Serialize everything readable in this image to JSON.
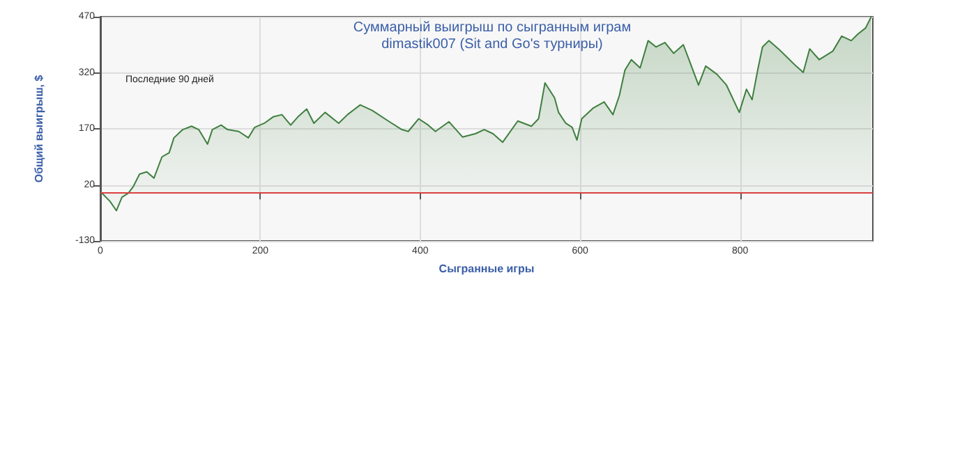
{
  "chart_data": {
    "type": "area",
    "title": "Суммарный выигрыш по сыгранным играм",
    "subtitle": "dimastik007 (Sit and Go's турниры)",
    "xlabel": "Сыгранные игры",
    "ylabel": "Общий выигрыш, $",
    "annotations": [
      "Последние 90 дней"
    ],
    "xlim": [
      0,
      966
    ],
    "xticks": [
      0,
      200,
      400,
      600,
      800
    ],
    "ylim": [
      -130,
      470
    ],
    "yticks": [
      -130,
      20,
      170,
      320,
      470
    ],
    "grid": true,
    "marker": "none",
    "line_style": "solid",
    "ref_lines": [
      {
        "axis": "y",
        "value": 0,
        "color": "#d94040"
      }
    ],
    "series": [
      {
        "color": "#3f7f3f",
        "x": [
          1,
          12,
          20,
          27,
          35,
          41,
          49,
          58,
          67,
          77,
          86,
          92,
          103,
          114,
          123,
          134,
          140,
          151,
          159,
          173,
          185,
          193,
          205,
          216,
          227,
          238,
          247,
          258,
          267,
          281,
          298,
          309,
          325,
          340,
          360,
          377,
          385,
          398,
          410,
          419,
          436,
          453,
          469,
          480,
          491,
          503,
          522,
          539,
          548,
          556,
          568,
          573,
          582,
          590,
          596,
          602,
          616,
          630,
          641,
          649,
          656,
          664,
          675,
          685,
          695,
          706,
          717,
          729,
          737,
          748,
          757,
          771,
          783,
          799,
          808,
          815,
          822,
          828,
          836,
          848,
          859,
          870,
          879,
          887,
          899,
          916,
          927,
          939,
          947,
          957,
          964
        ],
        "values": [
          0,
          -24,
          -49,
          -13,
          -2,
          15,
          49,
          55,
          38,
          95,
          106,
          146,
          168,
          177,
          168,
          129,
          168,
          180,
          168,
          163,
          146,
          174,
          185,
          202,
          208,
          180,
          202,
          223,
          185,
          214,
          185,
          208,
          234,
          219,
          191,
          168,
          163,
          197,
          180,
          163,
          189,
          148,
          157,
          168,
          157,
          134,
          191,
          177,
          197,
          293,
          253,
          214,
          185,
          174,
          140,
          197,
          225,
          242,
          208,
          259,
          327,
          355,
          333,
          406,
          389,
          401,
          372,
          395,
          350,
          287,
          338,
          316,
          287,
          214,
          276,
          248,
          327,
          389,
          406,
          384,
          361,
          338,
          321,
          384,
          355,
          378,
          418,
          406,
          423,
          440,
          470
        ]
      }
    ]
  }
}
